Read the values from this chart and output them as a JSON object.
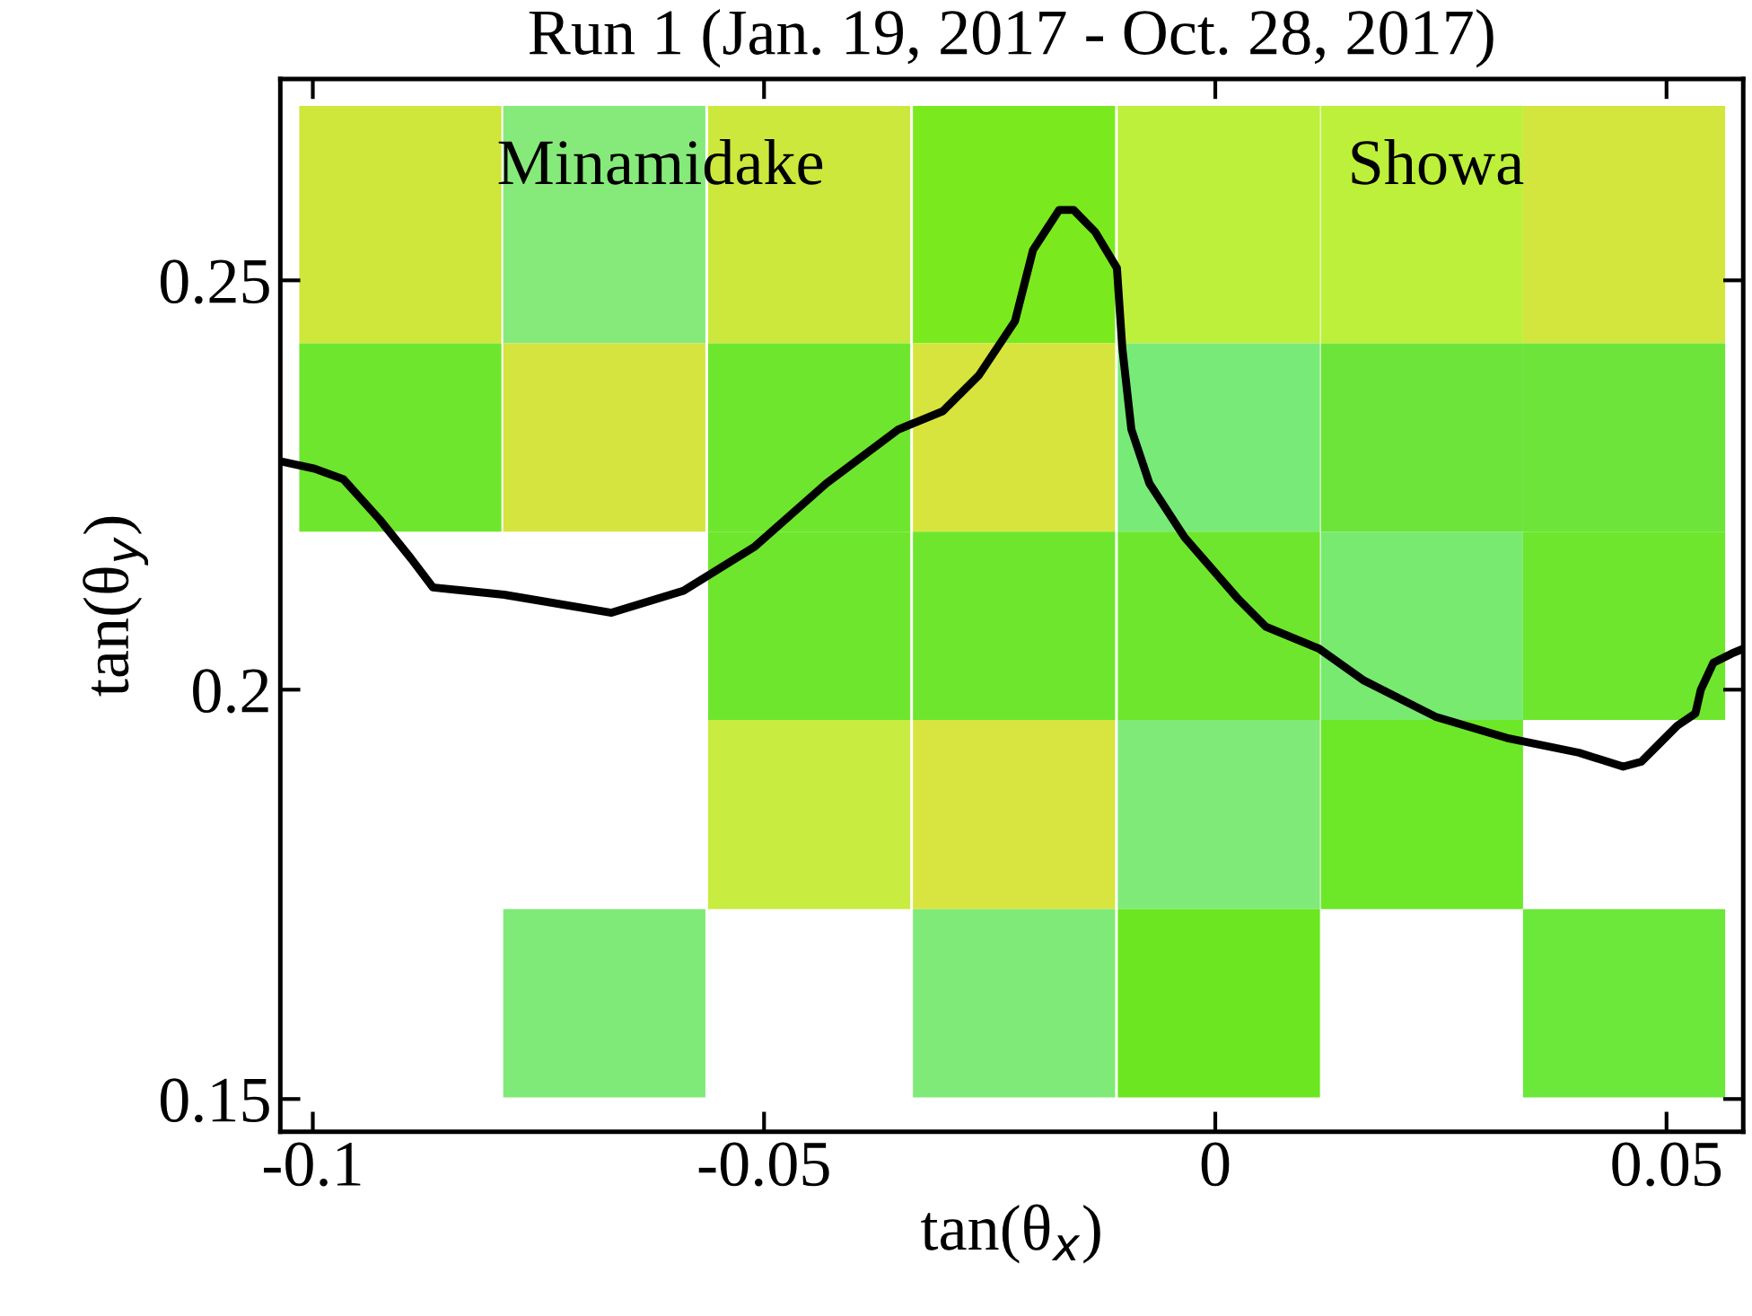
{
  "chart_data": {
    "type": "bar",
    "title": "Run 1 (Jan. 19, 2017 - Oct. 28, 2017)",
    "xlabel": "tan(θ$_{x}$)",
    "ylabel": "tan(θ$_{y}$)",
    "xlim": [
      -0.1036,
      0.0585
    ],
    "ylim": [
      0.146,
      0.2746
    ],
    "xticks": [
      -0.1,
      -0.05,
      0,
      0.05
    ],
    "yticks": [
      0.15,
      0.2,
      0.25
    ],
    "grid": false,
    "annotations": [
      "Minamidake",
      "Showa"
    ],
    "x": [
      -0.0903,
      -0.0677,
      -0.045,
      -0.0223,
      0.0004,
      0.0229,
      0.0453
    ],
    "series": [
      {
        "values": [
          0.029,
          0.029,
          0.029,
          0.029,
          0.029,
          0.029,
          0.029
        ],
        "base": [
          0.2423,
          0.2423,
          0.2423,
          0.2423,
          0.2423,
          0.2423,
          0.2423
        ],
        "colors": [
          "#cfe63a",
          "#86ea7a",
          "#cde83c",
          "#7aea1e",
          "#bdf03a",
          "#bdf03a",
          "#d2e63e"
        ]
      },
      {
        "values": [
          0.023,
          0.023,
          0.023,
          0.023,
          0.023,
          0.023,
          0.023
        ],
        "base": [
          0.2193,
          0.2193,
          0.2193,
          0.2193,
          0.2193,
          0.2193,
          0.2193
        ],
        "colors": [
          "#6ee62e",
          "#d5e43e",
          "#6ee62e",
          "#d8e43e",
          "#78ea78",
          "#6ce43a",
          "#6ce43a"
        ]
      },
      {
        "values": [
          null,
          null,
          0.023,
          0.023,
          0.023,
          0.023,
          0.023
        ],
        "base": [
          null,
          null,
          0.1963,
          0.1963,
          0.1963,
          0.1963,
          0.1963
        ],
        "colors": [
          null,
          null,
          "#6ee62e",
          "#6ee62e",
          "#6ee62e",
          "#78ea70",
          "#6ee62e"
        ]
      },
      {
        "values": [
          null,
          null,
          0.0231,
          0.0231,
          0.0231,
          0.0231,
          null
        ],
        "base": [
          null,
          null,
          0.1732,
          0.1732,
          0.1732,
          0.1732,
          null
        ],
        "colors": [
          null,
          null,
          "#c8ec40",
          "#d8e440",
          "#80ea78",
          "#6ce828",
          null
        ]
      },
      {
        "values": [
          null,
          0.023,
          null,
          0.023,
          0.023,
          null,
          0.023
        ],
        "base": [
          null,
          0.1502,
          null,
          0.1502,
          0.1502,
          null,
          0.1502
        ],
        "colors": [
          null,
          "#80ea78",
          null,
          "#80ea78",
          "#6ce620",
          null,
          "#6ce83a"
        ]
      },
      {
        "type": "line",
        "color": "#000000",
        "line_style": "solid",
        "x": [
          -0.1036,
          -0.0998,
          -0.0966,
          -0.0926,
          -0.0891,
          -0.0867,
          -0.0788,
          -0.0669,
          -0.0589,
          -0.051,
          -0.0431,
          -0.0351,
          -0.0302,
          -0.0262,
          -0.0222,
          -0.0202,
          -0.0173,
          -0.0157,
          -0.0133,
          -0.0109,
          -0.0103,
          -0.0093,
          -0.0073,
          -0.0034,
          0.0026,
          0.0056,
          0.0115,
          0.0165,
          0.0244,
          0.0323,
          0.0403,
          0.0452,
          0.0472,
          0.0492,
          0.0512,
          0.0532,
          0.0538,
          0.0552,
          0.0572,
          0.0585
        ],
        "values": [
          0.2279,
          0.227,
          0.2257,
          0.2208,
          0.216,
          0.2125,
          0.2116,
          0.2094,
          0.2121,
          0.2175,
          0.2252,
          0.2318,
          0.234,
          0.2384,
          0.245,
          0.2537,
          0.2586,
          0.2586,
          0.2559,
          0.2515,
          0.2417,
          0.2318,
          0.2252,
          0.2186,
          0.211,
          0.2077,
          0.205,
          0.2011,
          0.1967,
          0.1941,
          0.1923,
          0.1906,
          0.1912,
          0.1934,
          0.1956,
          0.1971,
          0.2,
          0.2033,
          0.2044,
          0.205
        ]
      }
    ]
  }
}
